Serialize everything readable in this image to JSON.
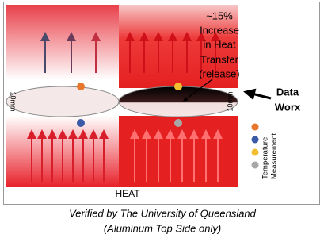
{
  "annotation": {
    "lines": [
      "~15%",
      "Increase",
      "in Heat",
      "Transfer",
      "(release)"
    ]
  },
  "brand": {
    "lines": [
      "Data",
      "Worx"
    ]
  },
  "disc_labels": [
    "10mm",
    "10mm"
  ],
  "legend": {
    "lines": [
      "Temperature",
      "Measurement"
    ]
  },
  "bottom_label": "HEAT",
  "caption": {
    "lines": [
      "Verified by The University of Queensland",
      "(Aluminum Top Side only)"
    ]
  }
}
